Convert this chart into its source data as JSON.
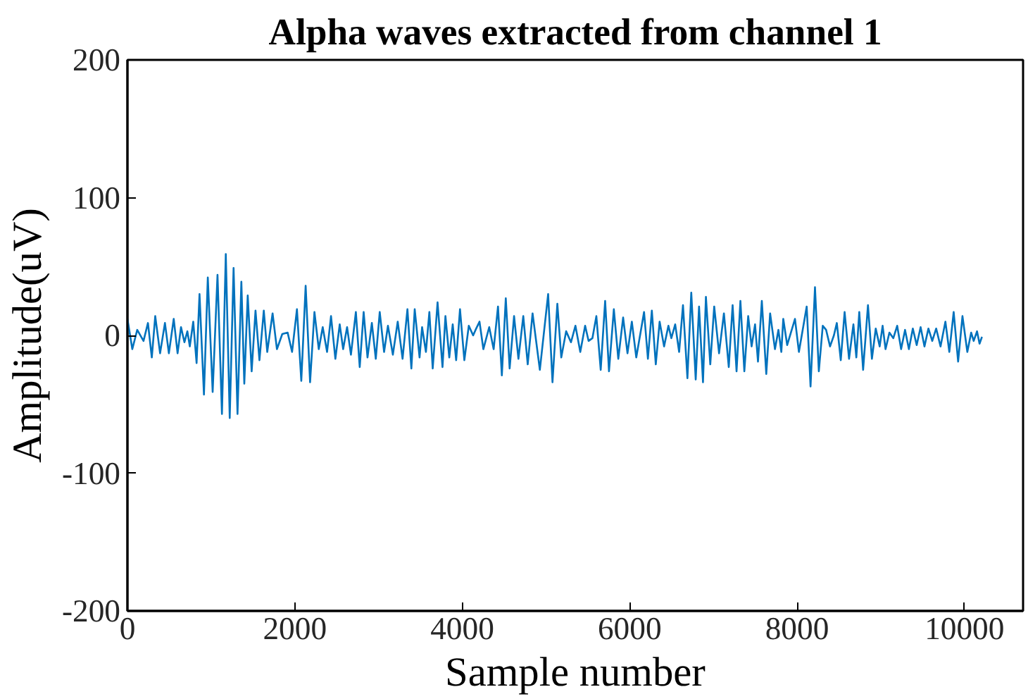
{
  "chart_data": {
    "type": "line",
    "title": "Alpha waves extracted from channel 1",
    "xlabel": "Sample number",
    "ylabel": "Amplitude(uV)",
    "xlim": [
      0,
      10700
    ],
    "xticks": [
      0,
      2000,
      4000,
      6000,
      8000,
      10000
    ],
    "ylim": [
      -200,
      200
    ],
    "yticks": [
      -200,
      -100,
      0,
      100,
      200
    ],
    "grid": false,
    "series": [
      {
        "color": "#0072bd",
        "x": [
          0,
          58,
          117,
          192,
          245,
          291,
          332,
          390,
          448,
          495,
          553,
          599,
          640,
          681,
          716,
          745,
          786,
          826,
          861,
          914,
          960,
          1018,
          1076,
          1129,
          1175,
          1222,
          1268,
          1315,
          1361,
          1396,
          1437,
          1484,
          1530,
          1577,
          1629,
          1670,
          1734,
          1786,
          1850,
          1914,
          1967,
          2025,
          2077,
          2129,
          2182,
          2234,
          2286,
          2333,
          2385,
          2432,
          2484,
          2536,
          2577,
          2624,
          2670,
          2729,
          2775,
          2822,
          2868,
          2920,
          2967,
          3014,
          3066,
          3112,
          3171,
          3229,
          3287,
          3345,
          3392,
          3432,
          3490,
          3520,
          3566,
          3607,
          3647,
          3705,
          3764,
          3799,
          3845,
          3886,
          3927,
          3973,
          4025,
          4078,
          4130,
          4159,
          4206,
          4252,
          4322,
          4375,
          4427,
          4473,
          4520,
          4566,
          4619,
          4671,
          4729,
          4782,
          4840,
          4927,
          5026,
          5078,
          5136,
          5183,
          5241,
          5299,
          5352,
          5410,
          5468,
          5509,
          5555,
          5602,
          5654,
          5707,
          5753,
          5811,
          5864,
          5922,
          5974,
          6026,
          6079,
          6172,
          6218,
          6265,
          6312,
          6358,
          6411,
          6463,
          6498,
          6544,
          6591,
          6637,
          6690,
          6736,
          6789,
          6829,
          6876,
          6911,
          6963,
          7010,
          7068,
          7126,
          7184,
          7230,
          7277,
          7323,
          7370,
          7416,
          7457,
          7498,
          7533,
          7579,
          7632,
          7678,
          7736,
          7777,
          7812,
          7835,
          7882,
          7975,
          8022,
          8115,
          8161,
          8214,
          8260,
          8307,
          8347,
          8394,
          8440,
          8475,
          8522,
          8568,
          8621,
          8673,
          8708,
          8743,
          8789,
          8847,
          8894,
          8940,
          8987,
          9022,
          9057,
          9103,
          9150,
          9196,
          9243,
          9290,
          9336,
          9383,
          9429,
          9476,
          9522,
          9569,
          9615,
          9662,
          9714,
          9772,
          9819,
          9871,
          9924,
          9976,
          10034,
          10080,
          10110,
          10150,
          10180,
          10209
        ],
        "values": [
          12,
          -10,
          4,
          -4,
          9,
          -16,
          14,
          -13,
          9,
          -13,
          12,
          -13,
          6,
          -5,
          3,
          -8,
          10,
          -20,
          30,
          -43,
          42,
          -41,
          44,
          -57,
          59,
          -60,
          49,
          -57,
          39,
          -35,
          29,
          -26,
          18,
          -18,
          18,
          -12,
          16,
          -10,
          1,
          2,
          -12,
          19,
          -33,
          36,
          -34,
          17,
          -10,
          6,
          -12,
          14,
          -17,
          8,
          -10,
          6,
          -14,
          17,
          -23,
          17,
          -16,
          9,
          -17,
          17,
          -12,
          7,
          -14,
          10,
          -17,
          19,
          -24,
          19,
          -16,
          6,
          -12,
          17,
          -24,
          24,
          -23,
          14,
          -16,
          8,
          -18,
          19,
          -18,
          7,
          0,
          4,
          10,
          -10,
          6,
          -10,
          21,
          -29,
          27,
          -24,
          14,
          -17,
          14,
          -21,
          16,
          -25,
          30,
          -34,
          23,
          -16,
          3,
          -5,
          7,
          -12,
          7,
          -4,
          -2,
          14,
          -25,
          25,
          -26,
          19,
          -17,
          13,
          -13,
          10,
          -16,
          17,
          -17,
          18,
          -21,
          10,
          -8,
          7,
          -2,
          8,
          -12,
          22,
          -31,
          31,
          -32,
          21,
          -34,
          28,
          -21,
          21,
          -13,
          16,
          -23,
          22,
          -26,
          25,
          -26,
          14,
          -8,
          8,
          -19,
          25,
          -28,
          16,
          -10,
          4,
          -12,
          12,
          -7,
          12,
          -12,
          21,
          -37,
          35,
          -26,
          7,
          4,
          -8,
          0,
          9,
          -18,
          17,
          -17,
          8,
          -16,
          17,
          -25,
          22,
          -17,
          5,
          -8,
          7,
          -10,
          2,
          -2,
          7,
          -10,
          4,
          -10,
          5,
          -7,
          6,
          -8,
          5,
          -4,
          5,
          -8,
          10,
          -12,
          17,
          -19,
          14,
          -12,
          2,
          -4,
          3,
          -6,
          -1
        ]
      }
    ]
  }
}
